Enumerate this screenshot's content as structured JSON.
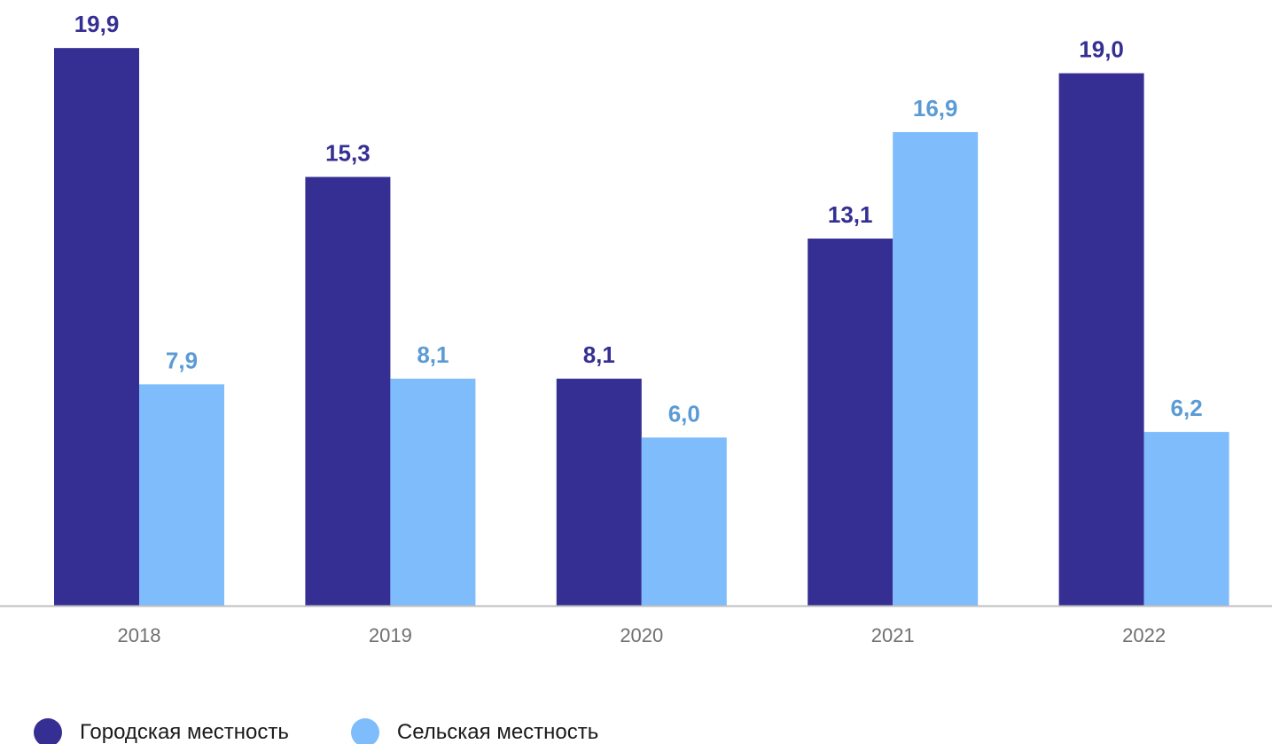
{
  "chart_data": {
    "type": "bar",
    "categories": [
      "2018",
      "2019",
      "2020",
      "2021",
      "2022"
    ],
    "series": [
      {
        "name": "Городская местность",
        "values": [
          19.9,
          15.3,
          8.1,
          13.1,
          19.0
        ],
        "labels": [
          "19,9",
          "15,3",
          "8,1",
          "13,1",
          "19,0"
        ],
        "color": "#352F93",
        "label_color": "#352F93"
      },
      {
        "name": "Сельская местность",
        "values": [
          7.9,
          8.1,
          6.0,
          16.9,
          6.2
        ],
        "labels": [
          "7,9",
          "8,1",
          "6,0",
          "16,9",
          "6,2"
        ],
        "color": "#7FBCFB",
        "label_color": "#5B9BD5"
      }
    ],
    "ylim": [
      0,
      20
    ],
    "grid": false,
    "legend_position": "bottom-left",
    "axis_color": "#BFBFBF"
  }
}
